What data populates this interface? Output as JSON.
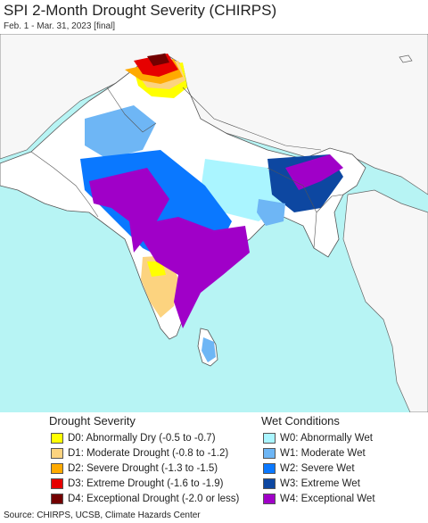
{
  "header": {
    "title": "SPI 2-Month Drought Severity (CHIRPS)",
    "subtitle": "Feb. 1 - Mar. 31, 2023 [final]"
  },
  "colors": {
    "ocean": "#b7f4f4",
    "land": "#ffffff",
    "outside_land": "#f7f7f7",
    "border": "#666666"
  },
  "legend": {
    "drought_title": "Drought Severity",
    "wet_title": "Wet Conditions",
    "drought_items": [
      {
        "label": "D0: Abnormally Dry (-0.5 to -0.7)",
        "color": "#ffff00"
      },
      {
        "label": "D1: Moderate Drought (-0.8 to -1.2)",
        "color": "#fcd37f"
      },
      {
        "label": "D2: Severe Drought (-1.3 to -1.5)",
        "color": "#ffaa00"
      },
      {
        "label": "D3: Extreme Drought (-1.6 to -1.9)",
        "color": "#e60000"
      },
      {
        "label": "D4: Exceptional Drought (-2.0 or less)",
        "color": "#730000"
      }
    ],
    "wet_items": [
      {
        "label": "W0: Abnormally Wet",
        "color": "#aaf5ff"
      },
      {
        "label": "W1: Moderate Wet",
        "color": "#6eb6f5"
      },
      {
        "label": "W2: Severe Wet",
        "color": "#0a78ff"
      },
      {
        "label": "W3: Extreme Wet",
        "color": "#0d47a1"
      },
      {
        "label": "W4: Exceptional Wet",
        "color": "#a000c8"
      }
    ]
  },
  "source": "Source: CHIRPS, UCSB, Climate Hazards Center"
}
